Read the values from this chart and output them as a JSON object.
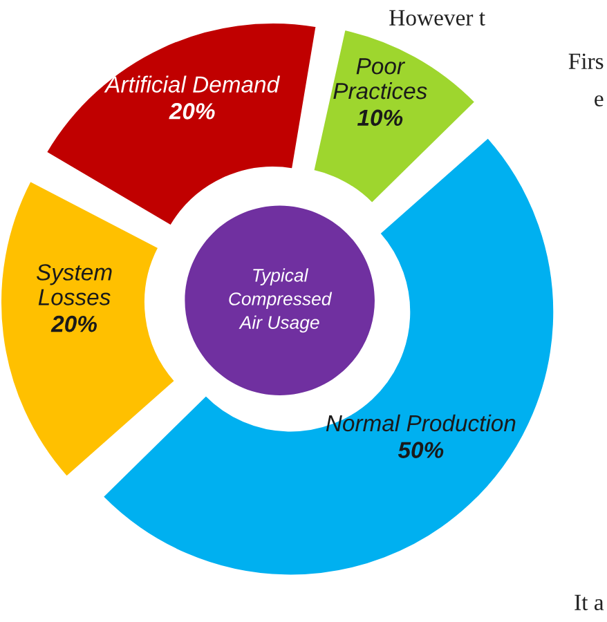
{
  "chart_data": {
    "type": "donut",
    "title": "Typical Compressed Air Usage",
    "categories": [
      "Poor Practices",
      "Normal Production",
      "System Losses",
      "Artificial Demand"
    ],
    "values": [
      10,
      50,
      20,
      20
    ],
    "colors": [
      "#9ed62e",
      "#00b0f0",
      "#ffc000",
      "#c00000"
    ],
    "value_labels": [
      "10%",
      "50%",
      "20%",
      "20%"
    ],
    "annotations": [
      "However t",
      "Firs",
      "e",
      "It a"
    ]
  }
}
